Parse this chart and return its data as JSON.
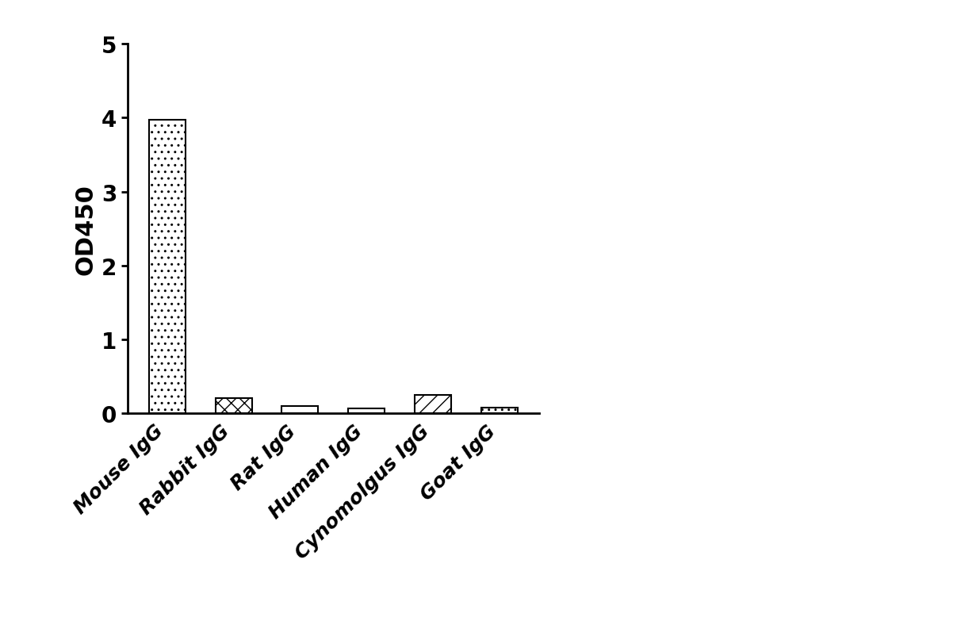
{
  "categories": [
    "Mouse IgG",
    "Rabbit IgG",
    "Rat IgG",
    "Human IgG",
    "Cynomolgus IgG",
    "Goat IgG"
  ],
  "values": [
    3.97,
    0.2,
    0.1,
    0.065,
    0.25,
    0.075
  ],
  "hatch_patterns": [
    "..",
    "xx",
    "",
    "---",
    "///",
    "...."
  ],
  "edge_color": "#000000",
  "face_color": "#ffffff",
  "ylabel": "OD450",
  "ylim": [
    0,
    5
  ],
  "yticks": [
    0,
    1,
    2,
    3,
    4,
    5
  ],
  "bar_width": 0.55,
  "axis_fontsize": 22,
  "tick_fontsize": 20,
  "label_fontsize": 18
}
